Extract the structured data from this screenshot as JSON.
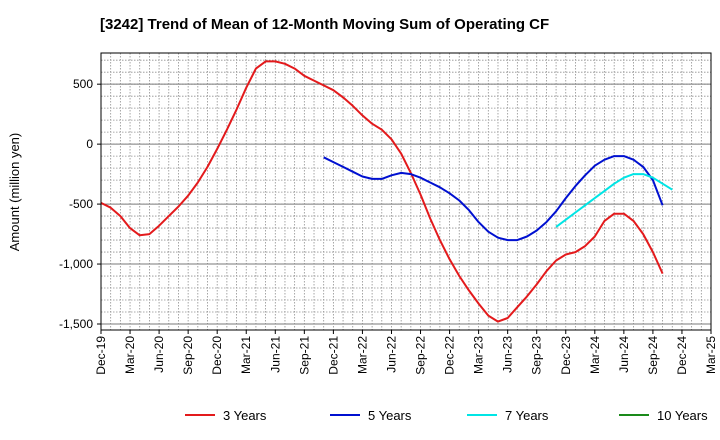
{
  "chart_data": {
    "type": "line",
    "title": "[3242]  Trend of Mean of 12-Month Moving Sum of Operating CF",
    "ylabel": "Amount (million yen)",
    "xlabel": "",
    "ylim": [
      -1550,
      760
    ],
    "yticks": [
      500,
      0,
      -500,
      -1000,
      -1500
    ],
    "ytick_labels": [
      "500",
      "0",
      "-500",
      "-1,000",
      "-1,500"
    ],
    "x_start": "Dec-19",
    "x_end": "Mar-25",
    "x_tick_labels": [
      "Dec-19",
      "Mar-20",
      "Jun-20",
      "Sep-20",
      "Dec-20",
      "Mar-21",
      "Jun-21",
      "Sep-21",
      "Dec-21",
      "Mar-22",
      "Jun-22",
      "Sep-22",
      "Dec-22",
      "Mar-23",
      "Jun-23",
      "Sep-23",
      "Dec-23",
      "Mar-24",
      "Jun-24",
      "Sep-24",
      "Dec-24",
      "Mar-25"
    ],
    "grid": true,
    "legend_position": "bottom",
    "series": [
      {
        "name": "3 Years",
        "color": "#e31a1c",
        "start": "Dec-19",
        "values": [
          -490,
          -530,
          -600,
          -700,
          -760,
          -750,
          -680,
          -600,
          -520,
          -430,
          -320,
          -190,
          -40,
          120,
          290,
          470,
          630,
          690,
          690,
          670,
          630,
          570,
          530,
          490,
          450,
          390,
          320,
          240,
          170,
          120,
          40,
          -80,
          -240,
          -420,
          -620,
          -800,
          -960,
          -1100,
          -1220,
          -1330,
          -1430,
          -1480,
          -1450,
          -1360,
          -1270,
          -1170,
          -1060,
          -970,
          -920,
          -900,
          -850,
          -770,
          -640,
          -580,
          -580,
          -640,
          -750,
          -900,
          -1080
        ]
      },
      {
        "name": "5 Years",
        "color": "#0010d0",
        "start": "Nov-21",
        "values": [
          -110,
          -150,
          -190,
          -230,
          -270,
          -290,
          -290,
          -260,
          -240,
          -250,
          -280,
          -320,
          -360,
          -410,
          -470,
          -550,
          -650,
          -730,
          -780,
          -800,
          -800,
          -770,
          -720,
          -650,
          -560,
          -450,
          -350,
          -260,
          -180,
          -130,
          -100,
          -100,
          -130,
          -190,
          -300,
          -510
        ]
      },
      {
        "name": "7 Years",
        "color": "#00e5e5",
        "start": "Nov-23",
        "values": [
          -690,
          -630,
          -570,
          -510,
          -450,
          -390,
          -330,
          -280,
          -250,
          -250,
          -280,
          -330,
          -380
        ]
      },
      {
        "name": "10 Years",
        "color": "#1a8a1a",
        "start": "Dec-19",
        "values": []
      }
    ]
  }
}
